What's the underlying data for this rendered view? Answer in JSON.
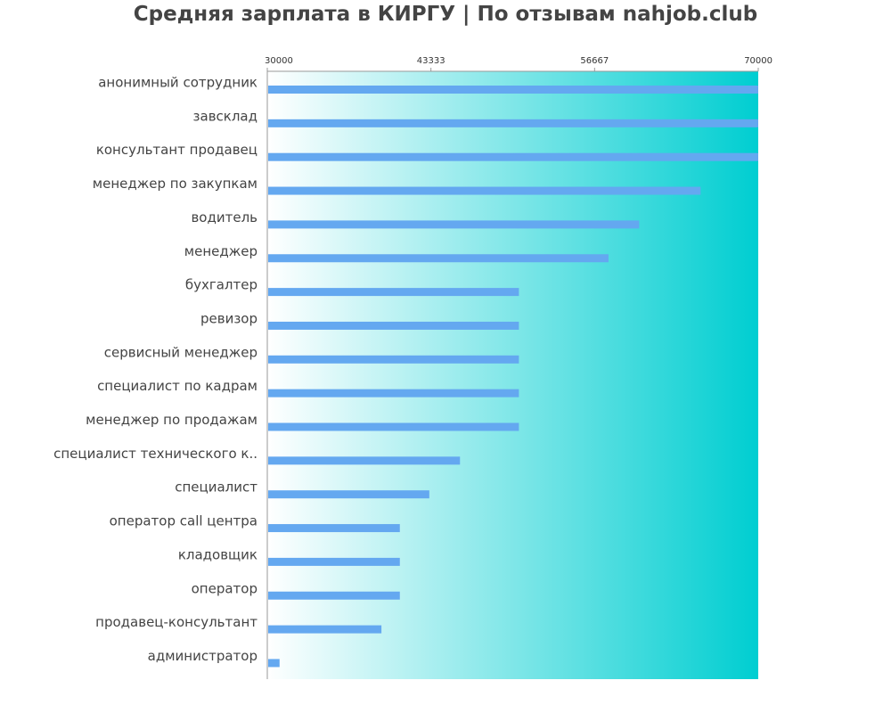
{
  "chart_data": {
    "type": "bar",
    "orientation": "horizontal",
    "title": "Средняя зарплата в КИРГУ | По отзывам nahjob.club",
    "xlabel": "",
    "ylabel": "",
    "xlim": [
      30000,
      70000
    ],
    "x_ticks": [
      "30000",
      "43333",
      "56667",
      "70000"
    ],
    "x_tick_values": [
      30000,
      43333,
      56667,
      70000
    ],
    "x_axis_position": "top",
    "grid": false,
    "categories": [
      "анонимный сотрудник",
      "завсклад",
      "консультант продавец",
      "менеджер по закупкам",
      "водитель",
      "менеджер",
      "бухгалтер",
      "ревизор",
      "сервисный менеджер",
      "специалист по кадрам",
      "менеджер по продажам",
      "специалист технического к..",
      "специалист",
      "оператор call центра",
      "кладовщик",
      "оператор",
      "продавец-консультант",
      "администратор"
    ],
    "values": [
      70000,
      70000,
      70000,
      65300,
      60300,
      57800,
      50500,
      50500,
      50500,
      50500,
      50500,
      45700,
      43200,
      40800,
      40800,
      40800,
      39300,
      31000
    ],
    "colors": {
      "bar": "#64A8F0",
      "background_gradient_start": "#ffffff",
      "background_gradient_end": "#00CED1",
      "axis": "#999999",
      "text": "#444444"
    }
  }
}
